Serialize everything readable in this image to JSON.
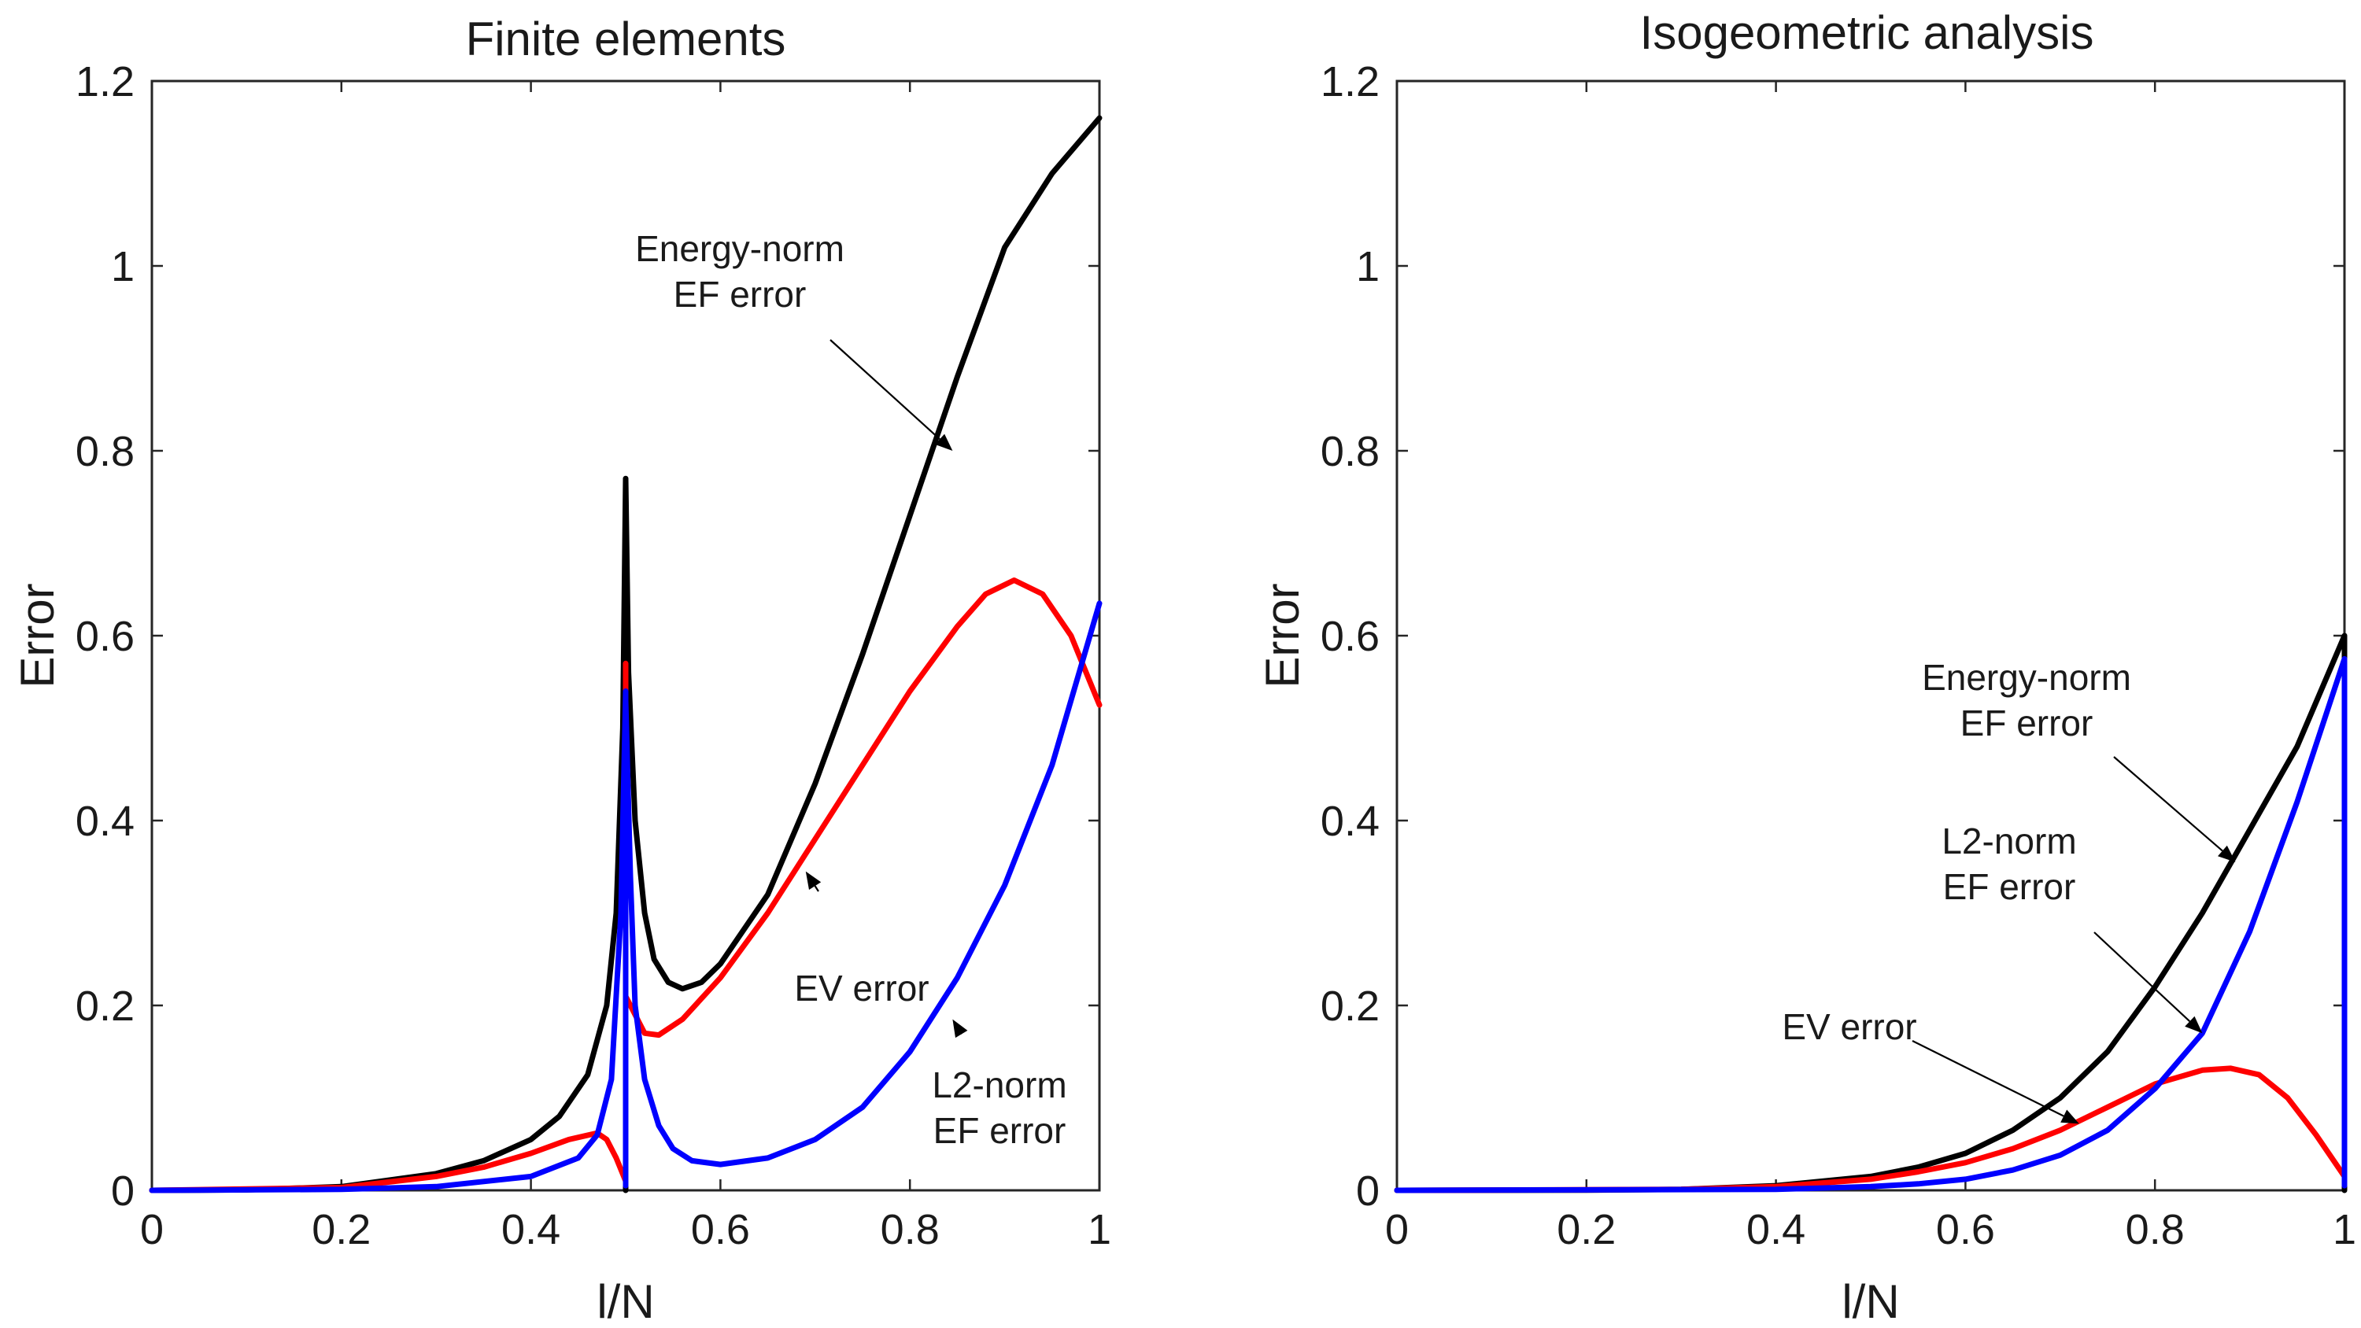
{
  "chart_data": [
    {
      "type": "line",
      "title": "Finite elements",
      "xlabel": "l/N",
      "ylabel": "Error",
      "xlim": [
        0,
        1
      ],
      "ylim": [
        0,
        1.2
      ],
      "grid": false,
      "xticks": [
        "0",
        "0.2",
        "0.4",
        "0.6",
        "0.8",
        "1"
      ],
      "yticks": [
        "0",
        "0.2",
        "0.4",
        "0.6",
        "0.8",
        "1",
        "1.2"
      ],
      "series": [
        {
          "name": "Energy-norm EF error",
          "color": "#000000",
          "points": [
            [
              0,
              0
            ],
            [
              0.1,
              0.0005
            ],
            [
              0.2,
              0.004
            ],
            [
              0.3,
              0.018
            ],
            [
              0.35,
              0.032
            ],
            [
              0.4,
              0.055
            ],
            [
              0.43,
              0.08
            ],
            [
              0.46,
              0.125
            ],
            [
              0.48,
              0.2
            ],
            [
              0.49,
              0.3
            ],
            [
              0.497,
              0.5
            ],
            [
              0.5,
              0.77
            ],
            [
              0.5,
              0
            ],
            [
              0.5,
              0.77
            ],
            [
              0.503,
              0.56
            ],
            [
              0.51,
              0.4
            ],
            [
              0.52,
              0.3
            ],
            [
              0.53,
              0.25
            ],
            [
              0.545,
              0.225
            ],
            [
              0.56,
              0.218
            ],
            [
              0.58,
              0.225
            ],
            [
              0.6,
              0.245
            ],
            [
              0.65,
              0.32
            ],
            [
              0.7,
              0.44
            ],
            [
              0.75,
              0.58
            ],
            [
              0.8,
              0.73
            ],
            [
              0.85,
              0.88
            ],
            [
              0.9,
              1.02
            ],
            [
              0.95,
              1.1
            ],
            [
              1,
              1.16
            ]
          ]
        },
        {
          "name": "EV error",
          "color": "#ff0000",
          "points": [
            [
              0,
              0
            ],
            [
              0.2,
              0.003
            ],
            [
              0.3,
              0.015
            ],
            [
              0.35,
              0.025
            ],
            [
              0.4,
              0.04
            ],
            [
              0.44,
              0.055
            ],
            [
              0.47,
              0.062
            ],
            [
              0.48,
              0.055
            ],
            [
              0.49,
              0.035
            ],
            [
              0.5,
              0.01
            ],
            [
              0.5,
              0.57
            ],
            [
              0.5,
              0.21
            ],
            [
              0.52,
              0.17
            ],
            [
              0.535,
              0.168
            ],
            [
              0.56,
              0.185
            ],
            [
              0.6,
              0.23
            ],
            [
              0.65,
              0.3
            ],
            [
              0.7,
              0.38
            ],
            [
              0.75,
              0.46
            ],
            [
              0.8,
              0.54
            ],
            [
              0.85,
              0.61
            ],
            [
              0.88,
              0.645
            ],
            [
              0.91,
              0.66
            ],
            [
              0.94,
              0.645
            ],
            [
              0.97,
              0.6
            ],
            [
              1,
              0.525
            ]
          ]
        },
        {
          "name": "L2-norm EF error",
          "color": "#0000ff",
          "points": [
            [
              0,
              0
            ],
            [
              0.2,
              0.001
            ],
            [
              0.3,
              0.004
            ],
            [
              0.4,
              0.015
            ],
            [
              0.45,
              0.035
            ],
            [
              0.47,
              0.06
            ],
            [
              0.485,
              0.12
            ],
            [
              0.495,
              0.3
            ],
            [
              0.5,
              0.54
            ],
            [
              0.5,
              0.005
            ],
            [
              0.5,
              0.53
            ],
            [
              0.505,
              0.34
            ],
            [
              0.51,
              0.2
            ],
            [
              0.52,
              0.12
            ],
            [
              0.535,
              0.07
            ],
            [
              0.55,
              0.045
            ],
            [
              0.57,
              0.032
            ],
            [
              0.6,
              0.028
            ],
            [
              0.65,
              0.035
            ],
            [
              0.7,
              0.055
            ],
            [
              0.75,
              0.09
            ],
            [
              0.8,
              0.15
            ],
            [
              0.85,
              0.23
            ],
            [
              0.9,
              0.33
            ],
            [
              0.95,
              0.46
            ],
            [
              1,
              0.635
            ]
          ]
        }
      ],
      "annotations": [
        {
          "lines": [
            "Energy-norm",
            "EF error"
          ],
          "target": [
            0.845,
            0.8
          ]
        },
        {
          "lines": [
            "EV error"
          ],
          "target": [
            0.69,
            0.345
          ]
        },
        {
          "lines": [
            "L2-norm",
            "EF error"
          ],
          "target": [
            0.845,
            0.185
          ]
        }
      ]
    },
    {
      "type": "line",
      "title": "Isogeometric analysis",
      "xlabel": "l/N",
      "ylabel": "Error",
      "xlim": [
        0,
        1
      ],
      "ylim": [
        0,
        1.2
      ],
      "grid": false,
      "xticks": [
        "0",
        "0.2",
        "0.4",
        "0.6",
        "0.8",
        "1"
      ],
      "yticks": [
        "0",
        "0.2",
        "0.4",
        "0.6",
        "0.8",
        "1",
        "1.2"
      ],
      "series": [
        {
          "name": "Energy-norm EF error",
          "color": "#000000",
          "points": [
            [
              0,
              0
            ],
            [
              0.2,
              0.0002
            ],
            [
              0.3,
              0.001
            ],
            [
              0.4,
              0.005
            ],
            [
              0.5,
              0.015
            ],
            [
              0.55,
              0.025
            ],
            [
              0.6,
              0.04
            ],
            [
              0.65,
              0.065
            ],
            [
              0.7,
              0.1
            ],
            [
              0.75,
              0.15
            ],
            [
              0.8,
              0.22
            ],
            [
              0.85,
              0.3
            ],
            [
              0.9,
              0.39
            ],
            [
              0.95,
              0.48
            ],
            [
              1,
              0.6
            ],
            [
              1,
              0
            ]
          ]
        },
        {
          "name": "EV error",
          "color": "#ff0000",
          "points": [
            [
              0,
              0
            ],
            [
              0.3,
              0.001
            ],
            [
              0.4,
              0.004
            ],
            [
              0.5,
              0.012
            ],
            [
              0.55,
              0.02
            ],
            [
              0.6,
              0.03
            ],
            [
              0.65,
              0.045
            ],
            [
              0.7,
              0.065
            ],
            [
              0.75,
              0.09
            ],
            [
              0.8,
              0.115
            ],
            [
              0.85,
              0.13
            ],
            [
              0.88,
              0.132
            ],
            [
              0.91,
              0.125
            ],
            [
              0.94,
              0.1
            ],
            [
              0.97,
              0.06
            ],
            [
              1,
              0.015
            ]
          ]
        },
        {
          "name": "L2-norm EF error",
          "color": "#0000ff",
          "points": [
            [
              0,
              0
            ],
            [
              0.4,
              0.001
            ],
            [
              0.5,
              0.004
            ],
            [
              0.55,
              0.007
            ],
            [
              0.6,
              0.012
            ],
            [
              0.65,
              0.022
            ],
            [
              0.7,
              0.038
            ],
            [
              0.75,
              0.065
            ],
            [
              0.8,
              0.11
            ],
            [
              0.85,
              0.17
            ],
            [
              0.9,
              0.28
            ],
            [
              0.95,
              0.42
            ],
            [
              1,
              0.575
            ],
            [
              1,
              0.005
            ]
          ]
        }
      ],
      "annotations": [
        {
          "lines": [
            "Energy-norm",
            "EF error"
          ],
          "target": [
            0.885,
            0.355
          ]
        },
        {
          "lines": [
            "L2-norm",
            "EF error"
          ],
          "target": [
            0.85,
            0.17
          ]
        },
        {
          "lines": [
            "EV error"
          ],
          "target": [
            0.72,
            0.072
          ]
        }
      ]
    }
  ]
}
